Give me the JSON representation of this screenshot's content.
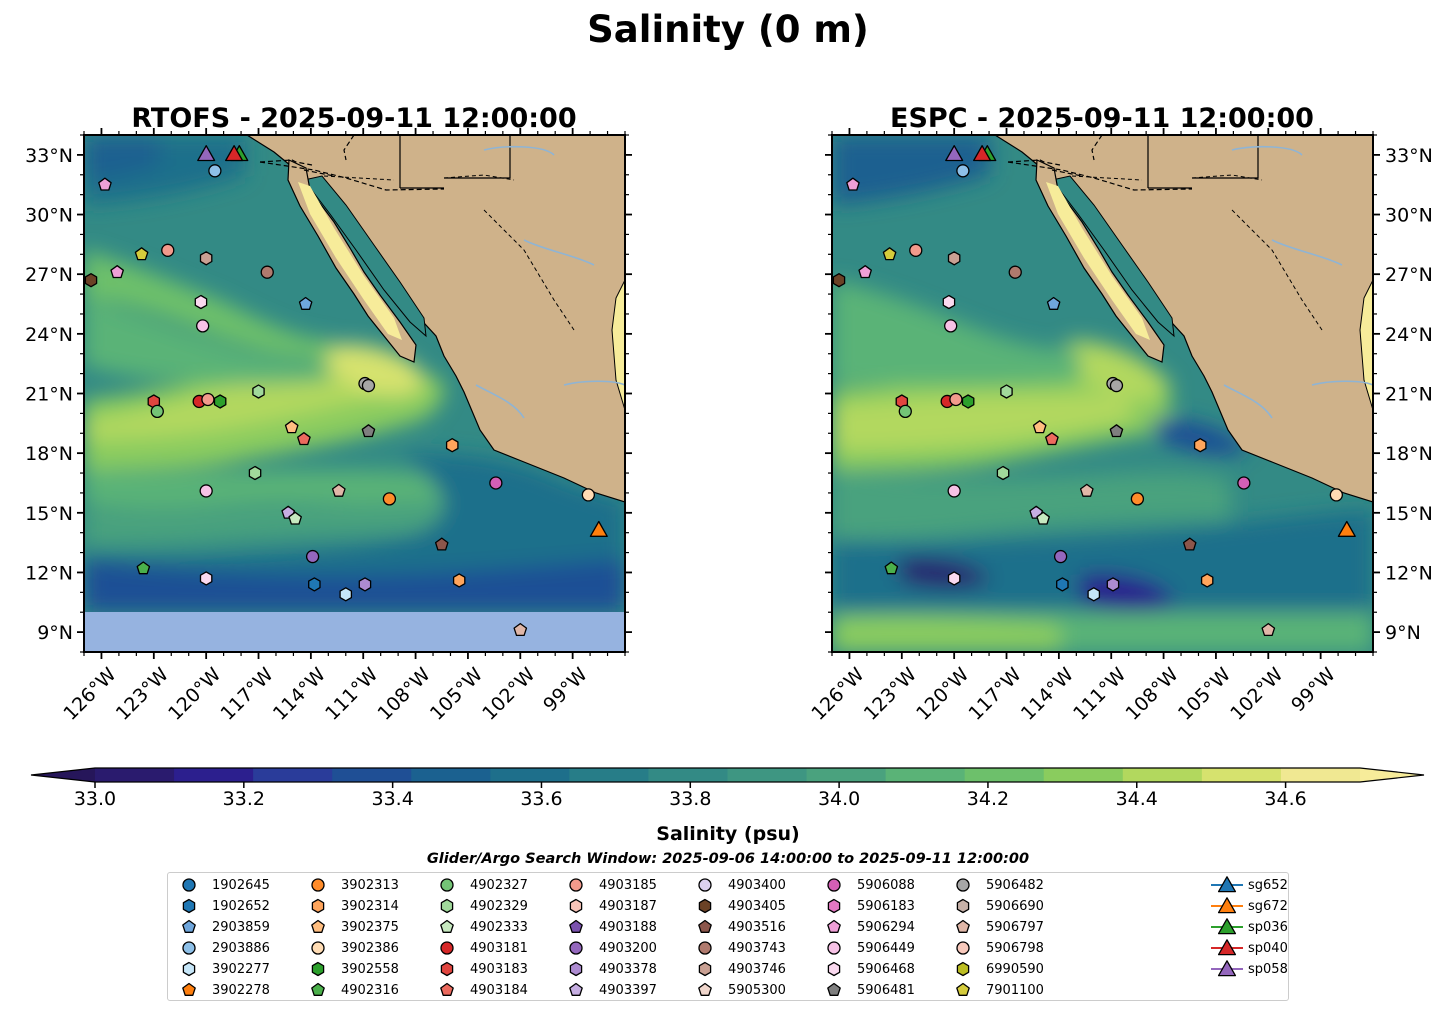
{
  "chart_data": {
    "type": "map",
    "suptitle": "Salinity (0 m)",
    "panels": [
      {
        "id": "rtofs",
        "title": "RTOFS - 2025-09-11 12:00:00"
      },
      {
        "id": "espc",
        "title": "ESPC - 2025-09-11 12:00:00"
      }
    ],
    "lon_range": [
      -127,
      -96
    ],
    "lat_range": [
      8,
      34
    ],
    "lon_ticks": [
      {
        "value": -126,
        "label": "126°W"
      },
      {
        "value": -123,
        "label": "123°W"
      },
      {
        "value": -120,
        "label": "120°W"
      },
      {
        "value": -117,
        "label": "117°W"
      },
      {
        "value": -114,
        "label": "114°W"
      },
      {
        "value": -111,
        "label": "111°W"
      },
      {
        "value": -108,
        "label": "108°W"
      },
      {
        "value": -105,
        "label": "105°W"
      },
      {
        "value": -102,
        "label": "102°W"
      },
      {
        "value": -99,
        "label": "99°W"
      }
    ],
    "lat_ticks": [
      {
        "value": 9,
        "label": "9°N"
      },
      {
        "value": 12,
        "label": "12°N"
      },
      {
        "value": 15,
        "label": "15°N"
      },
      {
        "value": 18,
        "label": "18°N"
      },
      {
        "value": 21,
        "label": "21°N"
      },
      {
        "value": 24,
        "label": "24°N"
      },
      {
        "value": 27,
        "label": "27°N"
      },
      {
        "value": 30,
        "label": "30°N"
      },
      {
        "value": 33,
        "label": "33°N"
      }
    ],
    "colorbar": {
      "label": "Salinity (psu)",
      "min": 33.0,
      "max": 34.7,
      "step": 0.1,
      "extend": "both",
      "ticks": [
        {
          "value": 33.0,
          "label": "33.0"
        },
        {
          "value": 33.2,
          "label": "33.2"
        },
        {
          "value": 33.4,
          "label": "33.4"
        },
        {
          "value": 33.6,
          "label": "33.6"
        },
        {
          "value": 33.8,
          "label": "33.8"
        },
        {
          "value": 34.0,
          "label": "34.0"
        },
        {
          "value": 34.2,
          "label": "34.2"
        },
        {
          "value": 34.4,
          "label": "34.4"
        },
        {
          "value": 34.6,
          "label": "34.6"
        }
      ],
      "colors": [
        "#2a1b6e",
        "#2c1f8e",
        "#2a3c9a",
        "#1f4f95",
        "#1b6190",
        "#1e6f8b",
        "#277d88",
        "#338a85",
        "#3e9682",
        "#4aa27e",
        "#5ab377",
        "#6dc06b",
        "#8acc5e",
        "#b2d85e",
        "#d6e26e",
        "#f0e892"
      ],
      "extend_low_color": "#26165a",
      "extend_high_color": "#f7ec9a"
    },
    "search_window": "Glider/Argo Search Window: 2025-09-06 14:00:00 to 2025-09-11 12:00:00",
    "platforms": [
      {
        "name": "1902645",
        "marker": "circle",
        "color": "#1f77b4"
      },
      {
        "name": "1902652",
        "marker": "hexagon",
        "color": "#1f77b4"
      },
      {
        "name": "2903859",
        "marker": "pentagon",
        "color": "#6fa6dc"
      },
      {
        "name": "2903886",
        "marker": "circle",
        "color": "#8ec0e8"
      },
      {
        "name": "3902277",
        "marker": "hexagon",
        "color": "#c6e6f8"
      },
      {
        "name": "3902278",
        "marker": "pentagon",
        "color": "#ff7f0e"
      },
      {
        "name": "3902313",
        "marker": "circle",
        "color": "#ff8c2a"
      },
      {
        "name": "3902314",
        "marker": "hexagon",
        "color": "#ffa55c"
      },
      {
        "name": "3902375",
        "marker": "pentagon",
        "color": "#ffbe80"
      },
      {
        "name": "3902386",
        "marker": "circle",
        "color": "#ffdcb4"
      },
      {
        "name": "3902558",
        "marker": "hexagon",
        "color": "#2ca02c"
      },
      {
        "name": "4902316",
        "marker": "pentagon",
        "color": "#4bb04b"
      },
      {
        "name": "4902327",
        "marker": "circle",
        "color": "#74c476"
      },
      {
        "name": "4902329",
        "marker": "hexagon",
        "color": "#a1d99b"
      },
      {
        "name": "4902333",
        "marker": "pentagon",
        "color": "#c7e9c0"
      },
      {
        "name": "4903181",
        "marker": "circle",
        "color": "#d62728"
      },
      {
        "name": "4903183",
        "marker": "hexagon",
        "color": "#e0453f"
      },
      {
        "name": "4903184",
        "marker": "pentagon",
        "color": "#ec6a5e"
      },
      {
        "name": "4903185",
        "marker": "circle",
        "color": "#f29a8c"
      },
      {
        "name": "4903187",
        "marker": "hexagon",
        "color": "#f8c4b8"
      },
      {
        "name": "4903188",
        "marker": "pentagon",
        "color": "#7b52ae"
      },
      {
        "name": "4903200",
        "marker": "circle",
        "color": "#9467bd"
      },
      {
        "name": "4903378",
        "marker": "hexagon",
        "color": "#ad8bd1"
      },
      {
        "name": "4903397",
        "marker": "pentagon",
        "color": "#c6aee2"
      },
      {
        "name": "4903400",
        "marker": "circle",
        "color": "#ddd0ef"
      },
      {
        "name": "4903405",
        "marker": "hexagon",
        "color": "#6b4226"
      },
      {
        "name": "4903516",
        "marker": "pentagon",
        "color": "#8c564b"
      },
      {
        "name": "4903743",
        "marker": "circle",
        "color": "#b07a6e"
      },
      {
        "name": "4903746",
        "marker": "hexagon",
        "color": "#c9a093"
      },
      {
        "name": "5905300",
        "marker": "pentagon",
        "color": "#f0d6cc"
      },
      {
        "name": "5906088",
        "marker": "circle",
        "color": "#d45fb5"
      },
      {
        "name": "5906183",
        "marker": "hexagon",
        "color": "#e377c2"
      },
      {
        "name": "5906294",
        "marker": "pentagon",
        "color": "#ee9fd6"
      },
      {
        "name": "5906449",
        "marker": "circle",
        "color": "#f7c2e6"
      },
      {
        "name": "5906468",
        "marker": "hexagon",
        "color": "#fad9ef"
      },
      {
        "name": "5906481",
        "marker": "pentagon",
        "color": "#7f7f7f"
      },
      {
        "name": "5906482",
        "marker": "circle",
        "color": "#a6a6a6"
      },
      {
        "name": "5906690",
        "marker": "hexagon",
        "color": "#c7b1a8"
      },
      {
        "name": "5906797",
        "marker": "pentagon",
        "color": "#e0b7a8"
      },
      {
        "name": "5906798",
        "marker": "circle",
        "color": "#f8c9bc"
      },
      {
        "name": "6990590",
        "marker": "hexagon",
        "color": "#bcbd22"
      },
      {
        "name": "7901100",
        "marker": "pentagon",
        "color": "#d5cc3c"
      },
      {
        "name": "sg652",
        "marker": "triangle",
        "color": "#1f77b4",
        "glider": true
      },
      {
        "name": "sg672",
        "marker": "triangle",
        "color": "#ff7f0e",
        "glider": true
      },
      {
        "name": "sp036",
        "marker": "triangle",
        "color": "#2ca02c",
        "glider": true
      },
      {
        "name": "sp040",
        "marker": "triangle",
        "color": "#d62728",
        "glider": true
      },
      {
        "name": "sp058",
        "marker": "triangle",
        "color": "#9467bd",
        "glider": true
      }
    ],
    "observations": [
      {
        "platform": "2903886",
        "lon": -119.5,
        "lat": 32.2
      },
      {
        "platform": "5906294",
        "lon": -125.8,
        "lat": 31.5
      },
      {
        "platform": "7901100",
        "lon": -123.7,
        "lat": 28.0
      },
      {
        "platform": "4903185",
        "lon": -122.2,
        "lat": 28.2
      },
      {
        "platform": "4903746",
        "lon": -120.0,
        "lat": 27.8
      },
      {
        "platform": "5906294",
        "lon": -125.1,
        "lat": 27.1
      },
      {
        "platform": "4903405",
        "lon": -126.6,
        "lat": 26.7
      },
      {
        "platform": "4903743",
        "lon": -116.5,
        "lat": 27.1
      },
      {
        "platform": "5906468",
        "lon": -120.3,
        "lat": 25.6
      },
      {
        "platform": "2903859",
        "lon": -114.3,
        "lat": 25.5
      },
      {
        "platform": "5906449",
        "lon": -120.2,
        "lat": 24.4
      },
      {
        "platform": "5906482",
        "lon": -110.9,
        "lat": 21.5
      },
      {
        "platform": "5906482",
        "lon": -110.7,
        "lat": 21.4
      },
      {
        "platform": "4902329",
        "lon": -117.0,
        "lat": 21.1
      },
      {
        "platform": "4903183",
        "lon": -123.0,
        "lat": 20.6
      },
      {
        "platform": "4903181",
        "lon": -120.4,
        "lat": 20.6
      },
      {
        "platform": "4903185",
        "lon": -119.9,
        "lat": 20.7
      },
      {
        "platform": "3902558",
        "lon": -119.2,
        "lat": 20.6
      },
      {
        "platform": "4902327",
        "lon": -122.8,
        "lat": 20.1
      },
      {
        "platform": "3902375",
        "lon": -115.1,
        "lat": 19.3
      },
      {
        "platform": "4903184",
        "lon": -114.4,
        "lat": 18.7
      },
      {
        "platform": "5906481",
        "lon": -110.7,
        "lat": 19.1
      },
      {
        "platform": "3902314",
        "lon": -105.9,
        "lat": 18.4
      },
      {
        "platform": "4902329",
        "lon": -117.2,
        "lat": 17.0
      },
      {
        "platform": "5906449",
        "lon": -120.0,
        "lat": 16.1
      },
      {
        "platform": "5906797",
        "lon": -112.4,
        "lat": 16.1
      },
      {
        "platform": "3902313",
        "lon": -109.5,
        "lat": 15.7
      },
      {
        "platform": "5906088",
        "lon": -103.4,
        "lat": 16.5
      },
      {
        "platform": "3902386",
        "lon": -98.1,
        "lat": 15.9
      },
      {
        "platform": "4903397",
        "lon": -115.3,
        "lat": 15.0
      },
      {
        "platform": "4902333",
        "lon": -114.9,
        "lat": 14.7
      },
      {
        "platform": "4903200",
        "lon": -113.9,
        "lat": 12.8
      },
      {
        "platform": "4903516",
        "lon": -106.5,
        "lat": 13.4
      },
      {
        "platform": "4902316",
        "lon": -123.6,
        "lat": 12.2
      },
      {
        "platform": "5906468",
        "lon": -120.0,
        "lat": 11.7
      },
      {
        "platform": "1902652",
        "lon": -113.8,
        "lat": 11.4
      },
      {
        "platform": "4903378",
        "lon": -110.9,
        "lat": 11.4
      },
      {
        "platform": "3902277",
        "lon": -112.0,
        "lat": 10.9
      },
      {
        "platform": "3902314",
        "lon": -105.5,
        "lat": 11.6
      },
      {
        "platform": "5906797",
        "lon": -102.0,
        "lat": 9.1
      },
      {
        "platform": "sp058",
        "lon": -120.0,
        "lat": 33.0
      },
      {
        "platform": "sp036",
        "lon": -118.1,
        "lat": 33.0
      },
      {
        "platform": "sp040",
        "lon": -118.4,
        "lat": 33.0
      },
      {
        "platform": "sg672",
        "lon": -97.5,
        "lat": 14.1
      }
    ]
  }
}
